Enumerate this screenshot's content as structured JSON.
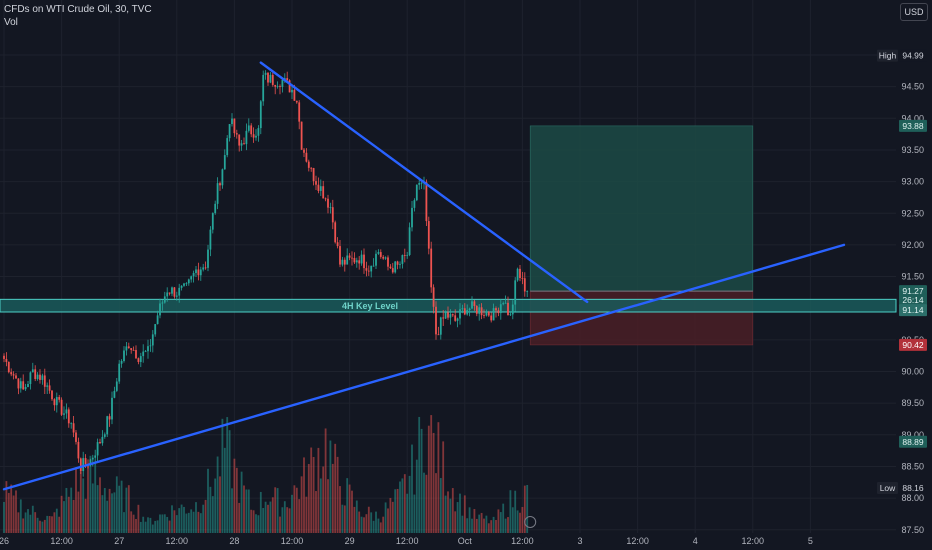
{
  "header": {
    "symbol_line": "CFDs on WTI Crude Oil, 30, TVC",
    "volume_label": "Vol",
    "currency_button": "USD"
  },
  "colors": {
    "background": "#131722",
    "up": "#26a69a",
    "down": "#ef5350",
    "trendline": "#2962ff",
    "key_zone_fill": "#1a5a5a",
    "key_zone_border": "#4dd0c8",
    "profit_zone": "#1c4a45",
    "loss_zone": "#4a1f26",
    "axis_text": "#b2b5be"
  },
  "chart_data": {
    "type": "candlestick",
    "title": "CFDs on WTI Crude Oil, 30, TVC",
    "y_axis": {
      "range": [
        87.5,
        95.2
      ],
      "tick_labels": [
        "95.00",
        "94.50",
        "94.00",
        "93.50",
        "93.00",
        "92.50",
        "92.00",
        "91.50",
        "90.50",
        "90.00",
        "89.50",
        "89.00",
        "88.50",
        "88.00",
        "87.50"
      ],
      "tick_values": [
        95.0,
        94.5,
        94.0,
        93.5,
        93.0,
        92.5,
        92.0,
        91.5,
        90.5,
        90.0,
        89.5,
        89.0,
        88.5,
        88.0,
        87.5
      ]
    },
    "x_axis": {
      "tick_labels": [
        "26",
        "12:00",
        "27",
        "12:00",
        "28",
        "12:00",
        "29",
        "12:00",
        "Oct",
        "12:00",
        "3",
        "12:00",
        "4",
        "12:00",
        "5"
      ],
      "tick_bars": [
        0,
        24,
        48,
        72,
        96,
        120,
        144,
        168,
        192,
        216,
        240,
        264,
        288,
        312,
        336
      ]
    },
    "price_labels": [
      {
        "label": "High",
        "value": "94.99",
        "price": 94.99,
        "style": "plain"
      },
      {
        "label": "",
        "value": "93.88",
        "price": 93.88,
        "style": "green"
      },
      {
        "label": "",
        "value": "91.27",
        "price": 91.27,
        "style": "green"
      },
      {
        "label": "",
        "value": "26:14",
        "price": 91.13,
        "style": "green"
      },
      {
        "label": "",
        "value": "91.14",
        "price": 90.97,
        "style": "teal"
      },
      {
        "label": "",
        "value": "90.42",
        "price": 90.42,
        "style": "red"
      },
      {
        "label": "",
        "value": "88.89",
        "price": 88.89,
        "style": "green"
      },
      {
        "label": "Low",
        "value": "88.16",
        "price": 88.16,
        "style": "plain"
      }
    ],
    "key_level": {
      "label": "4H Key Level",
      "top": 91.14,
      "bottom": 90.94
    },
    "trendlines": [
      {
        "name": "",
        "from": {
          "bar": 107,
          "price": 94.88
        },
        "to": {
          "bar": 243,
          "price": 91.1
        }
      },
      {
        "name": "",
        "from": {
          "bar": 0,
          "price": 88.14
        },
        "to": {
          "bar": 350,
          "price": 92.0
        }
      }
    ],
    "position": {
      "entry": 91.27,
      "target": 93.88,
      "stop": 90.42,
      "from_bar": 218,
      "to_bar": 312
    },
    "anchors": [
      {
        "bar": 0,
        "price": 90.2
      },
      {
        "bar": 4,
        "price": 89.95
      },
      {
        "bar": 8,
        "price": 89.7
      },
      {
        "bar": 12,
        "price": 90.0
      },
      {
        "bar": 16,
        "price": 89.9
      },
      {
        "bar": 22,
        "price": 89.5
      },
      {
        "bar": 28,
        "price": 89.2
      },
      {
        "bar": 32,
        "price": 88.5
      },
      {
        "bar": 36,
        "price": 88.6
      },
      {
        "bar": 40,
        "price": 88.9
      },
      {
        "bar": 44,
        "price": 89.3
      },
      {
        "bar": 48,
        "price": 90.1
      },
      {
        "bar": 52,
        "price": 90.45
      },
      {
        "bar": 56,
        "price": 90.25
      },
      {
        "bar": 60,
        "price": 90.3
      },
      {
        "bar": 64,
        "price": 90.9
      },
      {
        "bar": 68,
        "price": 91.3
      },
      {
        "bar": 72,
        "price": 91.25
      },
      {
        "bar": 76,
        "price": 91.3
      },
      {
        "bar": 80,
        "price": 91.6
      },
      {
        "bar": 84,
        "price": 91.7
      },
      {
        "bar": 88,
        "price": 92.7
      },
      {
        "bar": 92,
        "price": 93.4
      },
      {
        "bar": 94,
        "price": 94.0
      },
      {
        "bar": 98,
        "price": 93.55
      },
      {
        "bar": 102,
        "price": 93.8
      },
      {
        "bar": 106,
        "price": 93.8
      },
      {
        "bar": 108,
        "price": 94.65
      },
      {
        "bar": 112,
        "price": 94.6
      },
      {
        "bar": 116,
        "price": 94.6
      },
      {
        "bar": 120,
        "price": 94.45
      },
      {
        "bar": 122,
        "price": 94.3
      },
      {
        "bar": 124,
        "price": 93.6
      },
      {
        "bar": 128,
        "price": 93.15
      },
      {
        "bar": 132,
        "price": 92.9
      },
      {
        "bar": 136,
        "price": 92.6
      },
      {
        "bar": 140,
        "price": 91.7
      },
      {
        "bar": 144,
        "price": 91.75
      },
      {
        "bar": 148,
        "price": 91.8
      },
      {
        "bar": 152,
        "price": 91.65
      },
      {
        "bar": 156,
        "price": 91.9
      },
      {
        "bar": 160,
        "price": 91.65
      },
      {
        "bar": 164,
        "price": 91.65
      },
      {
        "bar": 168,
        "price": 91.85
      },
      {
        "bar": 170,
        "price": 92.5
      },
      {
        "bar": 172,
        "price": 92.95
      },
      {
        "bar": 175,
        "price": 92.9
      },
      {
        "bar": 178,
        "price": 91.3
      },
      {
        "bar": 180,
        "price": 90.6
      },
      {
        "bar": 184,
        "price": 90.9
      },
      {
        "bar": 188,
        "price": 90.8
      },
      {
        "bar": 192,
        "price": 91.0
      },
      {
        "bar": 196,
        "price": 91.0
      },
      {
        "bar": 200,
        "price": 90.95
      },
      {
        "bar": 204,
        "price": 90.9
      },
      {
        "bar": 208,
        "price": 91.15
      },
      {
        "bar": 211,
        "price": 90.85
      },
      {
        "bar": 214,
        "price": 91.6
      },
      {
        "bar": 216,
        "price": 91.4
      },
      {
        "bar": 218,
        "price": 91.27
      }
    ],
    "volume_anchors": [
      {
        "bar": 0,
        "v": 0.35
      },
      {
        "bar": 10,
        "v": 0.2
      },
      {
        "bar": 20,
        "v": 0.12
      },
      {
        "bar": 30,
        "v": 0.45
      },
      {
        "bar": 36,
        "v": 0.5
      },
      {
        "bar": 44,
        "v": 0.4
      },
      {
        "bar": 52,
        "v": 0.3
      },
      {
        "bar": 60,
        "v": 0.1
      },
      {
        "bar": 70,
        "v": 0.2
      },
      {
        "bar": 80,
        "v": 0.25
      },
      {
        "bar": 88,
        "v": 0.5
      },
      {
        "bar": 92,
        "v": 0.78
      },
      {
        "bar": 98,
        "v": 0.45
      },
      {
        "bar": 104,
        "v": 0.2
      },
      {
        "bar": 110,
        "v": 0.35
      },
      {
        "bar": 116,
        "v": 0.25
      },
      {
        "bar": 124,
        "v": 0.45
      },
      {
        "bar": 134,
        "v": 0.8
      },
      {
        "bar": 140,
        "v": 0.45
      },
      {
        "bar": 148,
        "v": 0.2
      },
      {
        "bar": 156,
        "v": 0.15
      },
      {
        "bar": 164,
        "v": 0.3
      },
      {
        "bar": 170,
        "v": 0.55
      },
      {
        "bar": 176,
        "v": 0.95
      },
      {
        "bar": 182,
        "v": 0.65
      },
      {
        "bar": 188,
        "v": 0.35
      },
      {
        "bar": 196,
        "v": 0.15
      },
      {
        "bar": 204,
        "v": 0.1
      },
      {
        "bar": 212,
        "v": 0.3
      },
      {
        "bar": 218,
        "v": 0.35
      }
    ]
  }
}
